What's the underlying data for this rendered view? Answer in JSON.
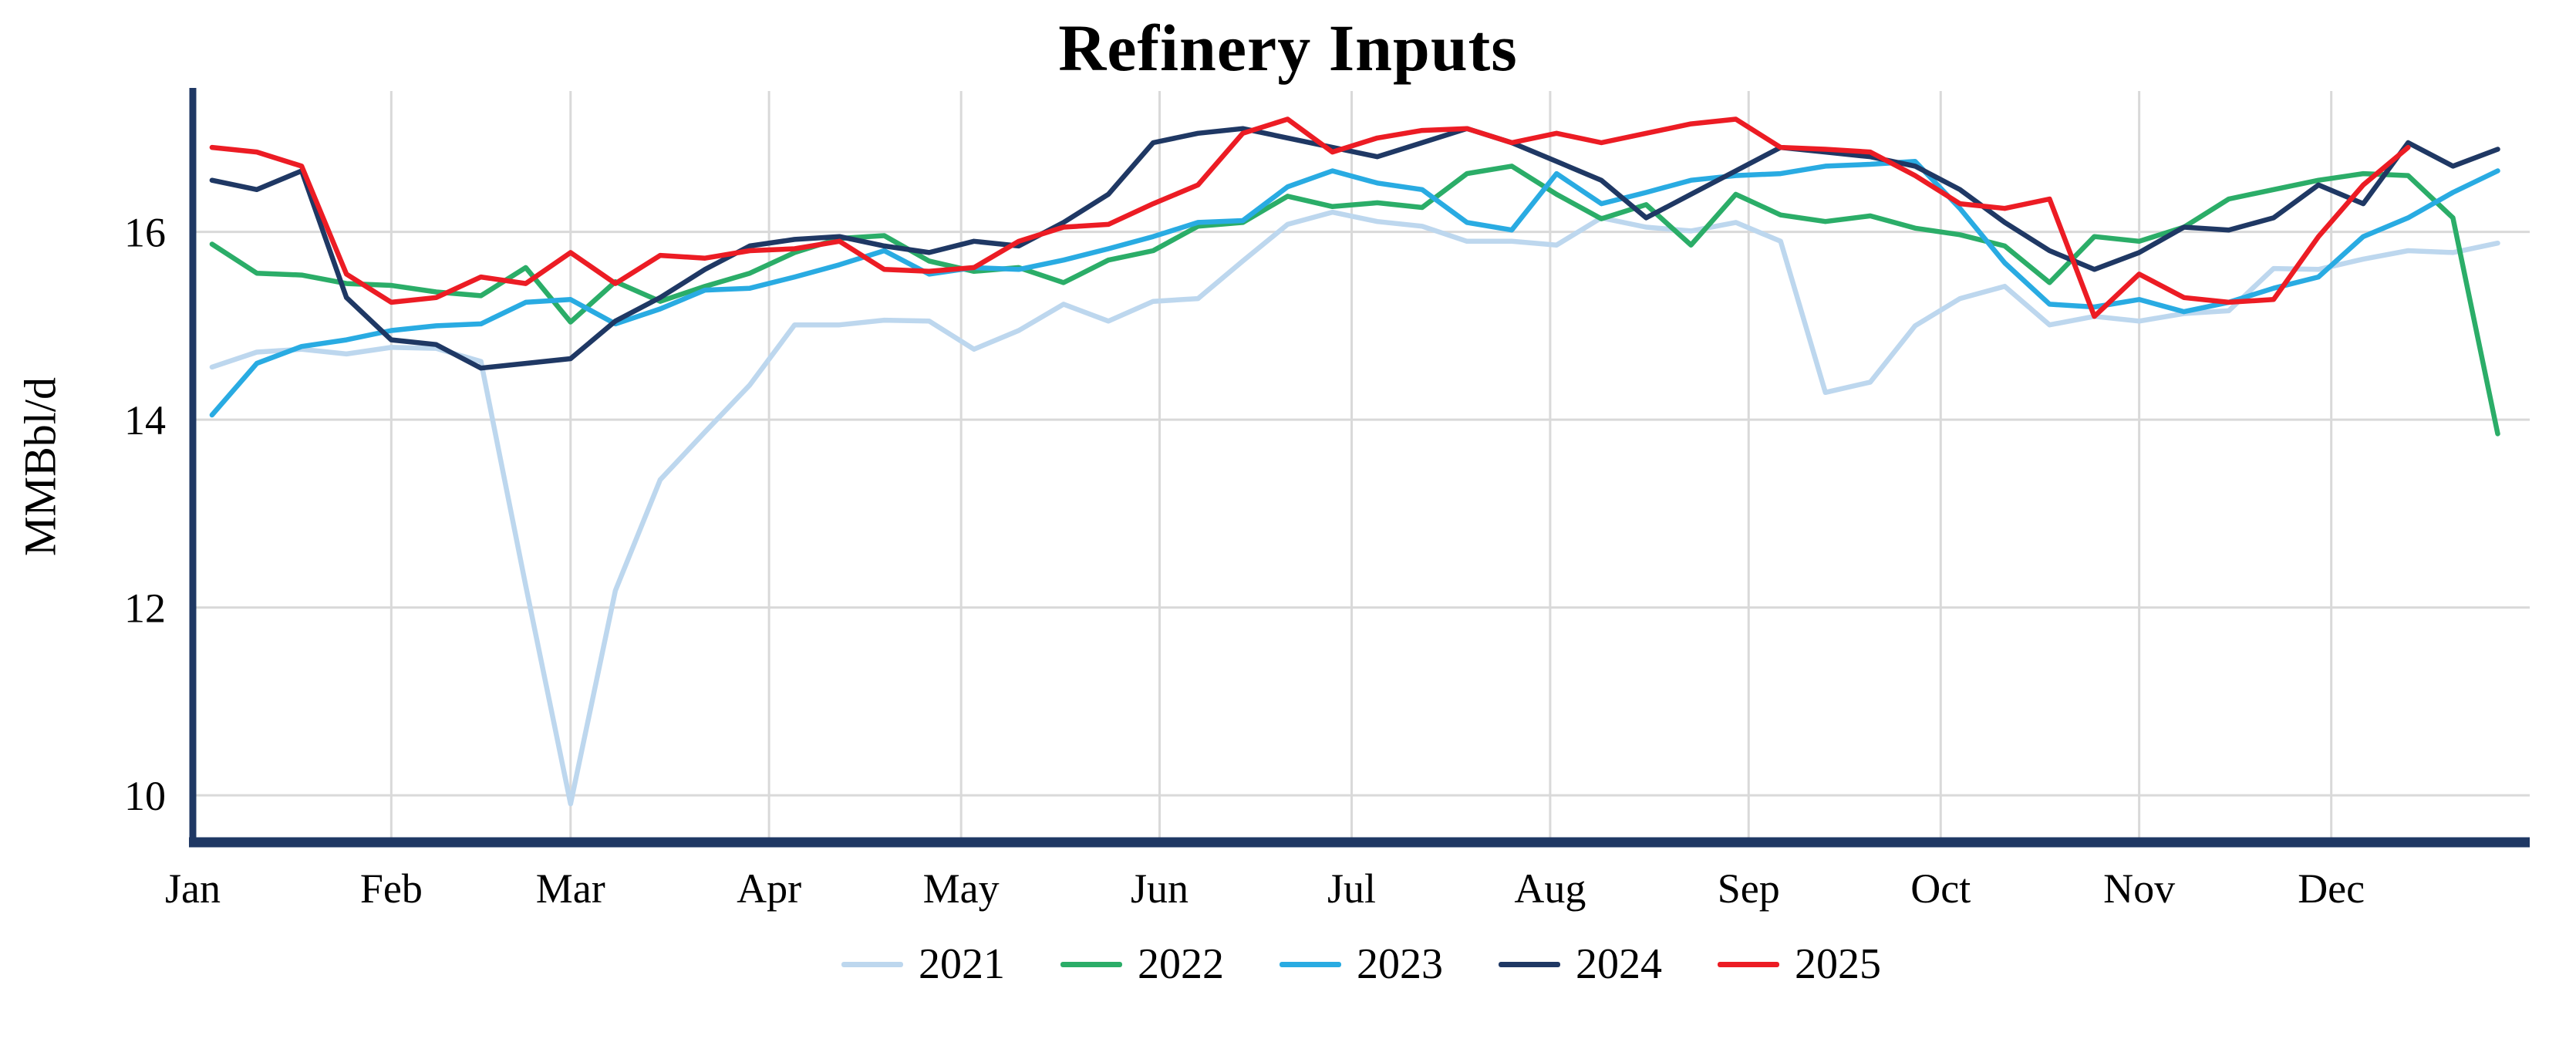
{
  "chart_data": {
    "type": "line",
    "title": "Refinery Inputs",
    "xlabel": "",
    "ylabel": "MMBbl/d",
    "ylim": [
      9.5,
      17.5
    ],
    "yticks": [
      10,
      12,
      14,
      16
    ],
    "x_tick_labels": [
      "Jan",
      "Feb",
      "Mar",
      "Apr",
      "May",
      "Jun",
      "Jul",
      "Aug",
      "Sep",
      "Oct",
      "Nov",
      "Dec"
    ],
    "month_start_days": [
      0,
      31,
      59,
      90,
      120,
      151,
      181,
      212,
      243,
      273,
      304,
      334
    ],
    "x_unit": "weekly values, one point per week of year",
    "grid": true,
    "legend_position": "bottom",
    "background_color": "#ffffff",
    "axis_color": "#1f3864",
    "grid_color": "#d9d9d9",
    "series": [
      {
        "name": "2021",
        "color": "#bdd7ee",
        "values": [
          14.56,
          14.72,
          14.75,
          14.7,
          14.77,
          14.76,
          14.62,
          12.23,
          9.91,
          12.18,
          13.36,
          13.87,
          14.37,
          15.01,
          15.01,
          15.06,
          15.05,
          14.75,
          14.95,
          15.23,
          15.05,
          15.26,
          15.29,
          15.69,
          16.08,
          16.21,
          16.11,
          16.06,
          15.9,
          15.9,
          15.86,
          16.15,
          16.05,
          16.01,
          16.1,
          15.9,
          14.29,
          14.4,
          15.0,
          15.29,
          15.42,
          15.01,
          15.1,
          15.05,
          15.13,
          15.16,
          15.61,
          15.6,
          15.71,
          15.8,
          15.78,
          15.88
        ]
      },
      {
        "name": "2022",
        "color": "#2bad68",
        "values": [
          15.87,
          15.56,
          15.54,
          15.45,
          15.43,
          15.36,
          15.32,
          15.62,
          15.04,
          15.47,
          15.26,
          15.42,
          15.56,
          15.78,
          15.93,
          15.96,
          15.69,
          15.58,
          15.62,
          15.46,
          15.7,
          15.8,
          16.06,
          16.1,
          16.38,
          16.27,
          16.31,
          16.26,
          16.62,
          16.7,
          16.4,
          16.14,
          16.29,
          15.86,
          16.4,
          16.18,
          16.11,
          16.17,
          16.04,
          15.97,
          15.85,
          15.46,
          15.95,
          15.9,
          16.05,
          16.35,
          16.45,
          16.55,
          16.62,
          16.6,
          16.15,
          13.85
        ]
      },
      {
        "name": "2023",
        "color": "#29abe2",
        "values": [
          14.05,
          14.6,
          14.78,
          14.85,
          14.95,
          15.0,
          15.02,
          15.25,
          15.28,
          15.02,
          15.18,
          15.38,
          15.4,
          15.52,
          15.65,
          15.8,
          15.55,
          15.62,
          15.6,
          15.7,
          15.82,
          15.95,
          16.1,
          16.12,
          16.48,
          16.65,
          16.52,
          16.45,
          16.1,
          16.02,
          16.62,
          16.3,
          16.42,
          16.55,
          16.6,
          16.62,
          16.7,
          16.72,
          16.75,
          16.25,
          15.67,
          15.23,
          15.2,
          15.28,
          15.15,
          15.25,
          15.4,
          15.52,
          15.95,
          16.15,
          16.42,
          16.65
        ]
      },
      {
        "name": "2024",
        "color": "#1f3864",
        "values": [
          16.55,
          16.45,
          16.65,
          15.3,
          14.85,
          14.8,
          14.55,
          14.6,
          14.65,
          15.05,
          15.3,
          15.6,
          15.85,
          15.92,
          15.95,
          15.85,
          15.78,
          15.9,
          15.85,
          16.1,
          16.4,
          16.95,
          17.05,
          17.1,
          17.0,
          16.9,
          16.8,
          16.95,
          17.1,
          16.95,
          16.75,
          16.55,
          16.15,
          16.4,
          16.65,
          16.9,
          16.85,
          16.8,
          16.7,
          16.45,
          16.1,
          15.8,
          15.6,
          15.78,
          16.05,
          16.02,
          16.15,
          16.5,
          16.3,
          16.95,
          16.7,
          16.88
        ]
      },
      {
        "name": "2025",
        "color": "#ec1c24",
        "values": [
          16.9,
          16.85,
          16.7,
          15.55,
          15.25,
          15.3,
          15.52,
          15.45,
          15.78,
          15.45,
          15.75,
          15.72,
          15.8,
          15.82,
          15.9,
          15.6,
          15.58,
          15.62,
          15.9,
          16.05,
          16.08,
          16.3,
          16.5,
          17.05,
          17.2,
          16.85,
          17.0,
          17.08,
          17.1,
          16.95,
          17.05,
          16.95,
          17.05,
          17.15,
          17.2,
          16.9,
          16.88,
          16.85,
          16.6,
          16.3,
          16.25,
          16.35,
          15.1,
          15.55,
          15.3,
          15.25,
          15.28,
          15.95,
          16.5,
          16.9,
          null,
          null
        ]
      }
    ]
  }
}
